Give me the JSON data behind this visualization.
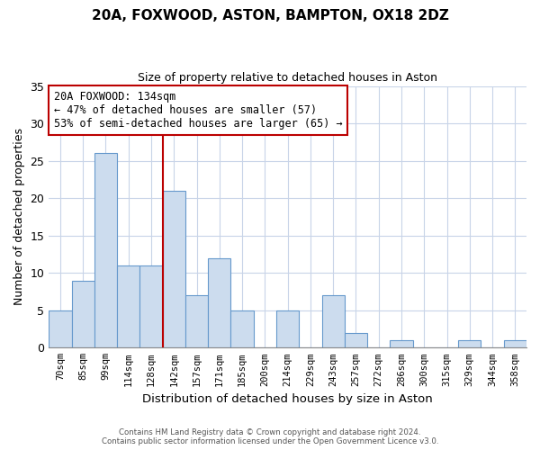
{
  "title": "20A, FOXWOOD, ASTON, BAMPTON, OX18 2DZ",
  "subtitle": "Size of property relative to detached houses in Aston",
  "xlabel": "Distribution of detached houses by size in Aston",
  "ylabel": "Number of detached properties",
  "bin_labels": [
    "70sqm",
    "85sqm",
    "99sqm",
    "114sqm",
    "128sqm",
    "142sqm",
    "157sqm",
    "171sqm",
    "185sqm",
    "200sqm",
    "214sqm",
    "229sqm",
    "243sqm",
    "257sqm",
    "272sqm",
    "286sqm",
    "300sqm",
    "315sqm",
    "329sqm",
    "344sqm",
    "358sqm"
  ],
  "bar_values": [
    5,
    9,
    26,
    11,
    11,
    21,
    7,
    12,
    5,
    0,
    5,
    0,
    7,
    2,
    0,
    1,
    0,
    0,
    1,
    0,
    1
  ],
  "bar_color": "#ccdcee",
  "bar_edge_color": "#6699cc",
  "property_line_label": "20A FOXWOOD: 134sqm",
  "annotation_line1": "← 47% of detached houses are smaller (57)",
  "annotation_line2": "53% of semi-detached houses are larger (65) →",
  "property_line_color": "#bb0000",
  "annotation_box_edge": "#bb0000",
  "ylim": [
    0,
    35
  ],
  "yticks": [
    0,
    5,
    10,
    15,
    20,
    25,
    30,
    35
  ],
  "footer_line1": "Contains HM Land Registry data © Crown copyright and database right 2024.",
  "footer_line2": "Contains public sector information licensed under the Open Government Licence v3.0.",
  "background_color": "#ffffff",
  "grid_color": "#c8d4e8"
}
